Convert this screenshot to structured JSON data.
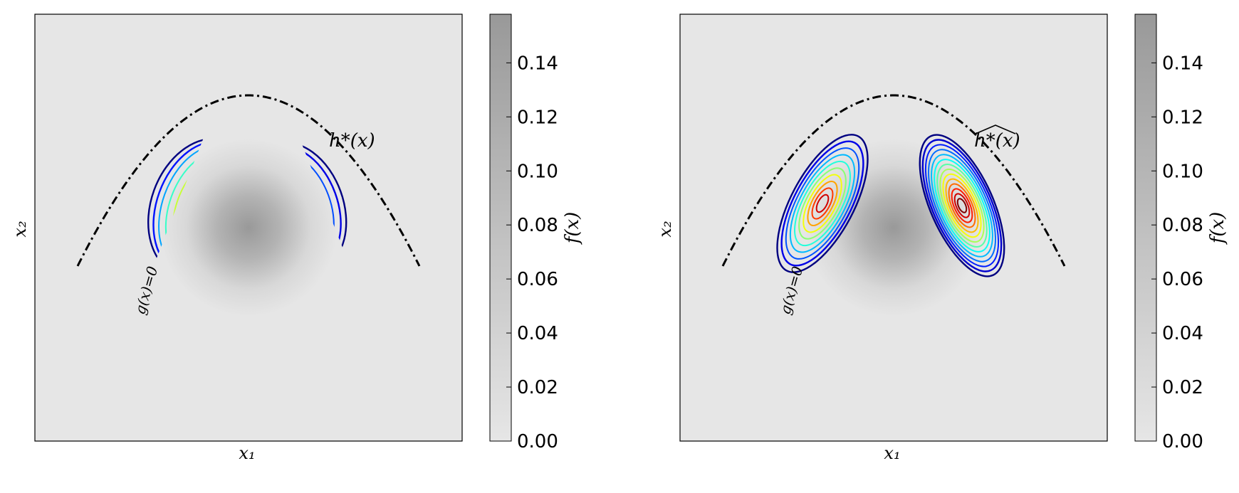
{
  "figure": {
    "panels": [
      {
        "xlabel": "x₁",
        "ylabel": "x₂",
        "curve_label": "g(x)=0",
        "annotation": "h*(x)",
        "annotation_has_hat": false
      },
      {
        "xlabel": "x₁",
        "ylabel": "x₂",
        "curve_label": "g(x)=0",
        "annotation": "h*(x)",
        "annotation_has_hat": true
      }
    ],
    "colorbar": {
      "label": "f(x)",
      "min": 0,
      "max": 0.158,
      "ticks": [
        "0.00",
        "0.02",
        "0.04",
        "0.06",
        "0.08",
        "0.10",
        "0.12",
        "0.14"
      ],
      "tick_values": [
        0,
        0.02,
        0.04,
        0.06,
        0.08,
        0.1,
        0.12,
        0.14
      ],
      "color_low": "#e6e6e6",
      "color_high": "#999999"
    }
  },
  "chart_data": [
    {
      "type": "heatmap",
      "description_of_content": "Gaussian density f(x) as grey background, limit-state curve g(x)=0 as dash-dot parabola, optimal importance density h*(x) contours clipped to failure domain",
      "xlabel": "x₁",
      "ylabel": "x₂",
      "zlabel": "f(x)",
      "zlim": [
        0,
        0.158
      ],
      "xlim": [
        -5,
        5
      ],
      "ylim": [
        -5,
        5
      ],
      "density_center": [
        0,
        0
      ],
      "limit_state": "x2 = 3.1 - 0.25*x1^2",
      "contour_colormap": "jet",
      "grid": false
    },
    {
      "type": "heatmap",
      "description_of_content": "Same as left panel with approximated importance density contours (two Gaussian-mixture lobes)",
      "xlabel": "x₁",
      "ylabel": "x₂",
      "zlabel": "f(x)",
      "zlim": [
        0,
        0.158
      ],
      "xlim": [
        -5,
        5
      ],
      "ylim": [
        -5,
        5
      ],
      "density_center": [
        0,
        0
      ],
      "limit_state": "x2 = 3.1 - 0.25*x1^2",
      "contour_colormap": "jet",
      "grid": false
    }
  ]
}
